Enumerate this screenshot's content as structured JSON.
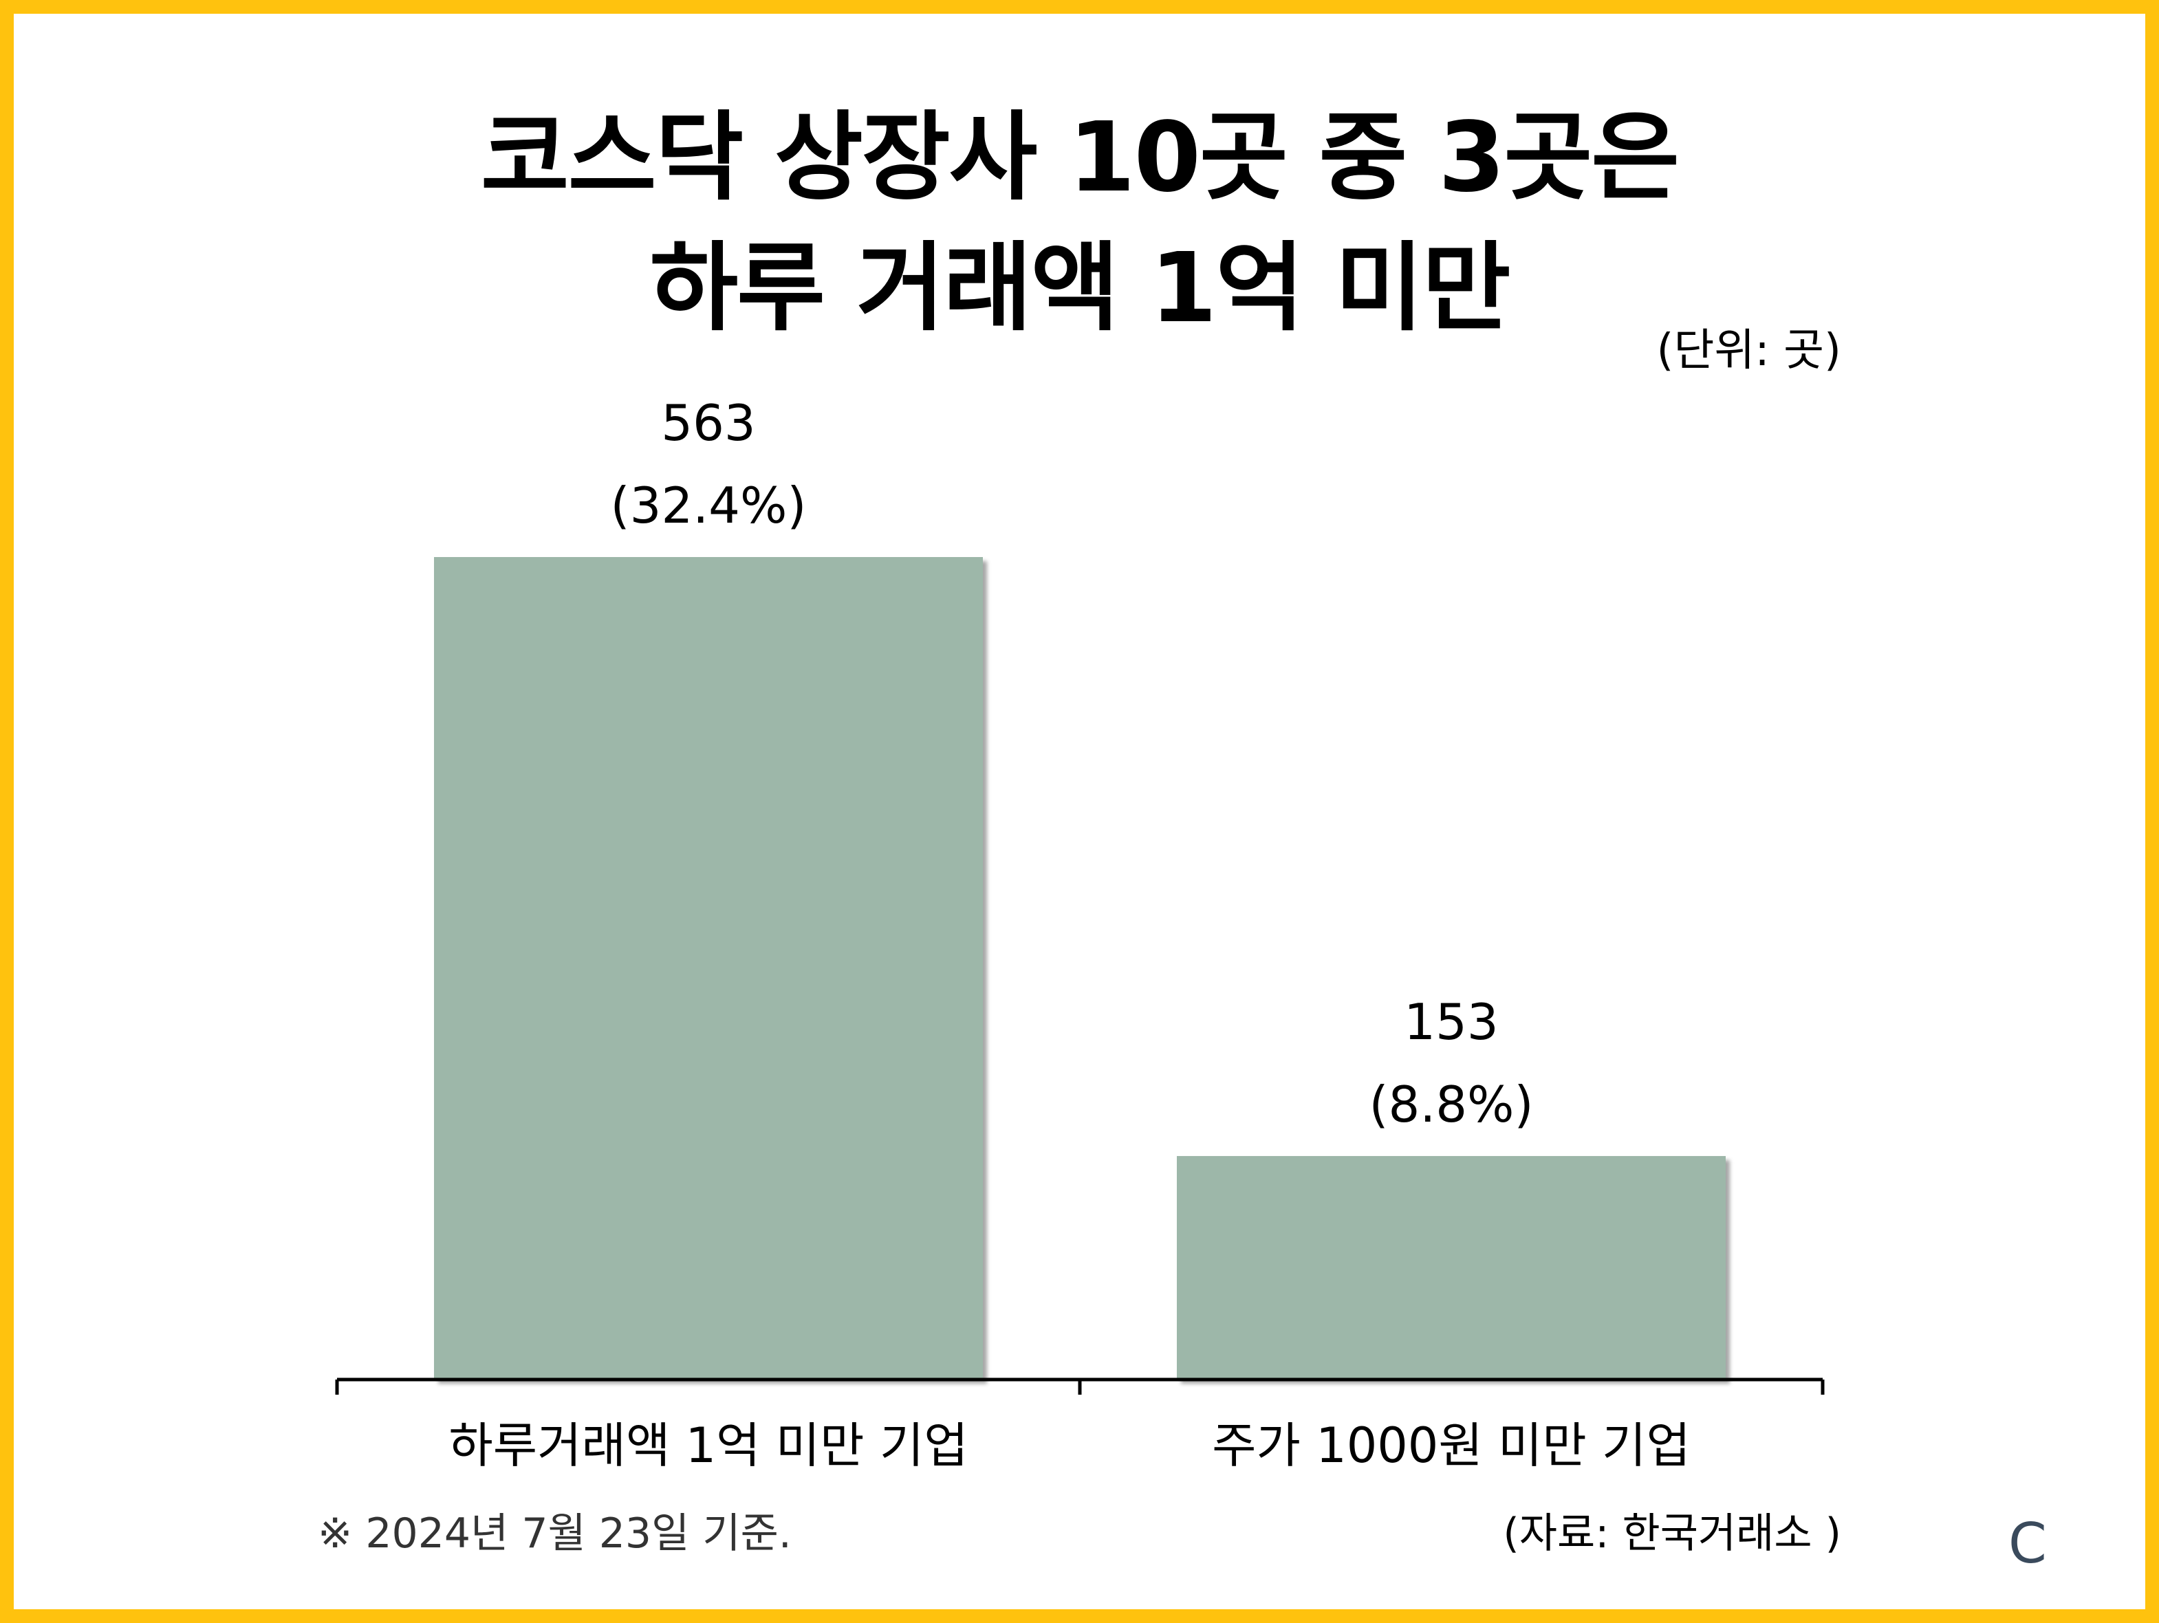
{
  "chart_data": {
    "type": "bar",
    "title_lines": [
      "코스닥 상장사 10곳 중 3곳은",
      "하루 거래액 1억 미만"
    ],
    "unit_label": "(단위: 곳)",
    "categories": [
      "하루거래액 1억 미만 기업",
      "주가 1000원 미만 기업"
    ],
    "values": [
      563,
      153
    ],
    "value_labels": [
      "563",
      "153"
    ],
    "percent_labels": [
      "(32.4%)",
      "(8.8%)"
    ],
    "ylim": [
      0,
      563
    ],
    "bar_color": "#9DB7A9",
    "axis_color": "#000000",
    "grid": false,
    "legend": "none"
  },
  "footer": {
    "note": "※ 2024년 7월 23일 기준.",
    "source": "(자료: 한국거래소 )",
    "logo": "C"
  },
  "colors": {
    "frame": "#FFC20E",
    "background": "#FFFFFF"
  }
}
